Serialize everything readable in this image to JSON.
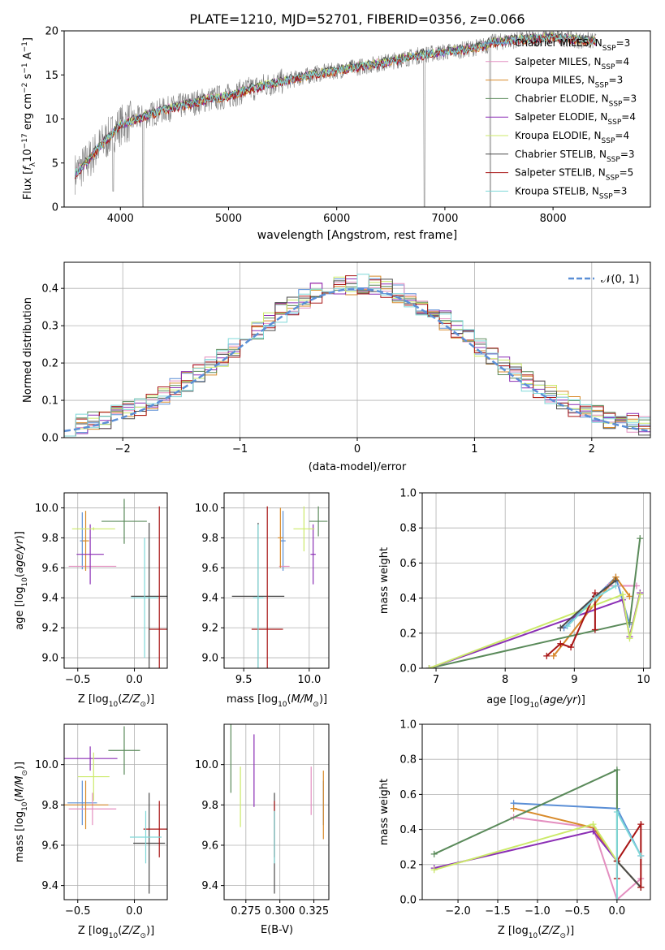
{
  "figure_title": "PLATE=1210, MJD=52701, FIBERID=0356, z=0.066",
  "colors": {
    "Chabrier MILES": "#5b8fd6",
    "Salpeter MILES": "#e48fc0",
    "Kroupa MILES": "#d88a2a",
    "Chabrier ELODIE": "#5a8a5a",
    "Salpeter ELODIE": "#8b2fb5",
    "Kroupa ELODIE": "#ccea6a",
    "Chabrier STELIB": "#4a4a4a",
    "Salpeter STELIB": "#a81414",
    "Kroupa STELIB": "#7fd8d8",
    "gauss": "#5b8fd6",
    "observed": "#808080"
  },
  "chart_data": [
    {
      "id": "spectrum",
      "type": "line",
      "title": "PLATE=1210, MJD=52701, FIBERID=0356, z=0.066",
      "xlabel": "wavelength [Angstrom, rest frame]",
      "ylabel": "Flux [f_λ10^-17 erg cm^-2 s^-1 A^-1]",
      "xlim": [
        3480,
        8900
      ],
      "ylim": [
        0,
        20
      ],
      "xticks": [
        4000,
        5000,
        6000,
        7000,
        8000
      ],
      "yticks": [
        0,
        5,
        10,
        15,
        20
      ],
      "legend_loc": "upper right",
      "legend": [
        {
          "prefix": "Chabrier MILES, N",
          "sub": "SSP",
          "suffix": "=3"
        },
        {
          "prefix": "Salpeter MILES, N",
          "sub": "SSP",
          "suffix": "=4"
        },
        {
          "prefix": "Kroupa MILES, N",
          "sub": "SSP",
          "suffix": "=3"
        },
        {
          "prefix": "Chabrier ELODIE, N",
          "sub": "SSP",
          "suffix": "=3"
        },
        {
          "prefix": "Salpeter ELODIE, N",
          "sub": "SSP",
          "suffix": "=4"
        },
        {
          "prefix": "Kroupa ELODIE, N",
          "sub": "SSP",
          "suffix": "=4"
        },
        {
          "prefix": "Chabrier STELIB, N",
          "sub": "SSP",
          "suffix": "=3"
        },
        {
          "prefix": "Salpeter STELIB, N",
          "sub": "SSP",
          "suffix": "=5"
        },
        {
          "prefix": "Kroupa STELIB, N",
          "sub": "SSP",
          "suffix": "=3"
        }
      ],
      "continuum_x": [
        3580,
        3700,
        3800,
        3900,
        4000,
        4200,
        4400,
        4600,
        4800,
        5000,
        5200,
        5400,
        5600,
        5800,
        6000,
        6200,
        6400,
        6600,
        6800,
        7000,
        7200,
        7400
      ],
      "continuum_y": [
        3.8,
        5.2,
        6.8,
        8.0,
        9.3,
        10.2,
        11.0,
        11.6,
        12.2,
        12.6,
        13.4,
        14.0,
        14.5,
        15.1,
        15.5,
        15.9,
        16.3,
        16.8,
        17.3,
        17.6,
        17.9,
        18.4
      ],
      "observed_tail_x": [
        7400,
        7600,
        7800,
        8000,
        8200,
        8400
      ],
      "observed_tail_y": [
        18.6,
        18.9,
        19.1,
        19.3,
        19.0,
        18.8
      ],
      "dips_x": [
        3933,
        4210,
        6810,
        7420
      ],
      "dips_y": [
        1.8,
        0.0,
        0.0,
        0.0
      ]
    },
    {
      "id": "residuals",
      "type": "histogram",
      "xlabel": "(data-model)/error",
      "ylabel": "Normed distribution",
      "xlim": [
        -2.5,
        2.5
      ],
      "ylim": [
        0,
        0.47
      ],
      "xticks": [
        -2,
        -1,
        0,
        1,
        2
      ],
      "yticks": [
        0.0,
        0.1,
        0.2,
        0.3,
        0.4
      ],
      "legend": "𝒩(0, 1)",
      "legend_loc": "upper right",
      "bin_width": 0.1,
      "gaussian": {
        "mean": 0,
        "sigma": 1
      }
    },
    {
      "id": "z_age",
      "type": "errorbar",
      "xlabel_main": "Z [log",
      "xlabel_sub": "10",
      "xlabel_rest": "(Z/Z",
      "ylabel": "age  [log10(age/yr)]",
      "xlim": [
        -0.62,
        0.29
      ],
      "ylim": [
        8.93,
        10.1
      ],
      "xticks": [
        -0.5,
        0.0
      ],
      "yticks": [
        9.0,
        9.2,
        9.4,
        9.6,
        9.8,
        10.0
      ],
      "points": [
        {
          "m": "Chabrier MILES",
          "x": -0.46,
          "xerr": 0.02,
          "y": 9.78,
          "yerr": 0.19
        },
        {
          "m": "Salpeter MILES",
          "x": -0.37,
          "xerr": 0.21,
          "y": 9.61,
          "yerr": 0.0
        },
        {
          "m": "Kroupa MILES",
          "x": -0.43,
          "xerr": 0.03,
          "y": 9.78,
          "yerr": 0.2
        },
        {
          "m": "Chabrier ELODIE",
          "x": -0.09,
          "xerr": 0.2,
          "y": 9.91,
          "yerr": 0.15
        },
        {
          "m": "Salpeter ELODIE",
          "x": -0.39,
          "xerr": 0.12,
          "y": 9.69,
          "yerr": 0.2
        },
        {
          "m": "Kroupa ELODIE",
          "x": -0.36,
          "xerr": 0.19,
          "y": 9.86,
          "yerr": 0.01
        },
        {
          "m": "Chabrier STELIB",
          "x": 0.13,
          "xerr": 0.16,
          "y": 9.41,
          "yerr": 0.49
        },
        {
          "m": "Salpeter STELIB",
          "x": 0.22,
          "xerr": 0.09,
          "y": 9.19,
          "yerr": 0.82
        },
        {
          "m": "Kroupa STELIB",
          "x": 0.09,
          "xerr": 0.12,
          "y": 9.4,
          "yerr": 0.4
        }
      ]
    },
    {
      "id": "mass_age",
      "type": "errorbar",
      "xlabel_main": "mass [log",
      "xlabel_sub": "10",
      "xlabel_rest": "(M/M",
      "ylabel": "",
      "xlim": [
        9.35,
        10.15
      ],
      "ylim": [
        8.93,
        10.1
      ],
      "xticks": [
        9.5,
        10.0
      ],
      "yticks": [
        9.0,
        9.2,
        9.4,
        9.6,
        9.8,
        10.0
      ],
      "points": [
        {
          "m": "Chabrier MILES",
          "x": 9.8,
          "xerr": 0.02,
          "y": 9.78,
          "yerr": 0.2
        },
        {
          "m": "Salpeter MILES",
          "x": 9.81,
          "xerr": 0.04,
          "y": 9.61,
          "yerr": 0.0
        },
        {
          "m": "Kroupa MILES",
          "x": 9.78,
          "xerr": 0.02,
          "y": 9.8,
          "yerr": 0.2
        },
        {
          "m": "Chabrier ELODIE",
          "x": 10.07,
          "xerr": 0.07,
          "y": 9.91,
          "yerr": 0.1
        },
        {
          "m": "Salpeter ELODIE",
          "x": 10.03,
          "xerr": 0.02,
          "y": 9.69,
          "yerr": 0.2
        },
        {
          "m": "Kroupa ELODIE",
          "x": 9.96,
          "xerr": 0.08,
          "y": 9.86,
          "yerr": 0.15
        },
        {
          "m": "Chabrier STELIB",
          "x": 9.61,
          "xerr": 0.2,
          "y": 9.41,
          "yerr": 0.49
        },
        {
          "m": "Salpeter STELIB",
          "x": 9.68,
          "xerr": 0.12,
          "y": 9.19,
          "yerr": 0.82
        },
        {
          "m": "Kroupa STELIB",
          "x": 9.61,
          "xerr": 0.04,
          "y": 9.4,
          "yerr": 0.49
        }
      ]
    },
    {
      "id": "age_weight",
      "type": "line",
      "xlabel": "age  [log10(age/yr)]",
      "ylabel": "mass weight",
      "xlim": [
        6.8,
        10.1
      ],
      "ylim": [
        0,
        1
      ],
      "xticks": [
        7,
        8,
        9,
        10
      ],
      "yticks": [
        0.0,
        0.2,
        0.4,
        0.6,
        0.8,
        1.0
      ],
      "series": [
        {
          "m": "Chabrier MILES",
          "x": [
            8.85,
            9.6,
            9.8
          ],
          "y": [
            0.23,
            0.52,
            0.25
          ]
        },
        {
          "m": "Salpeter MILES",
          "x": [
            8.7,
            9.5,
            9.9
          ],
          "y": [
            0.07,
            0.47,
            0.47
          ]
        },
        {
          "m": "Kroupa MILES",
          "x": [
            8.7,
            9.6,
            9.8
          ],
          "y": [
            0.07,
            0.52,
            0.41
          ]
        },
        {
          "m": "Chabrier ELODIE",
          "x": [
            6.9,
            9.8,
            9.95
          ],
          "y": [
            0.0,
            0.26,
            0.74
          ]
        },
        {
          "m": "Salpeter ELODIE",
          "x": [
            6.9,
            9.7,
            9.8,
            9.95
          ],
          "y": [
            0.0,
            0.39,
            0.18,
            0.43
          ]
        },
        {
          "m": "Kroupa ELODIE",
          "x": [
            6.9,
            9.7,
            9.8,
            9.95
          ],
          "y": [
            0.0,
            0.42,
            0.17,
            0.42
          ]
        },
        {
          "m": "Chabrier STELIB",
          "x": [
            8.8,
            9.3,
            9.6
          ],
          "y": [
            0.23,
            0.41,
            0.5
          ]
        },
        {
          "m": "Salpeter STELIB",
          "x": [
            8.6,
            8.8,
            8.95,
            9.3,
            9.3
          ],
          "y": [
            0.07,
            0.14,
            0.12,
            0.43,
            0.22
          ]
        },
        {
          "m": "Kroupa STELIB",
          "x": [
            8.9,
            9.3,
            9.6
          ],
          "y": [
            0.24,
            0.4,
            0.47
          ]
        }
      ]
    },
    {
      "id": "z_mass",
      "type": "errorbar",
      "xlabel_main": "Z [log",
      "xlabel_sub": "10",
      "xlabel_rest": "(Z/Z",
      "ylabel": "mass [log10(M/M☉)]",
      "xlim": [
        -0.62,
        0.29
      ],
      "ylim": [
        9.33,
        10.2
      ],
      "xticks": [
        -0.5,
        0.0
      ],
      "yticks": [
        9.4,
        9.6,
        9.8,
        10.0
      ],
      "points": [
        {
          "m": "Chabrier MILES",
          "x": -0.46,
          "xerr": 0.13,
          "y": 9.81,
          "yerr": 0.11
        },
        {
          "m": "Salpeter MILES",
          "x": -0.37,
          "xerr": 0.21,
          "y": 9.78,
          "yerr": 0.08
        },
        {
          "m": "Kroupa MILES",
          "x": -0.43,
          "xerr": 0.2,
          "y": 9.8,
          "yerr": 0.12
        },
        {
          "m": "Chabrier ELODIE",
          "x": -0.09,
          "xerr": 0.14,
          "y": 10.07,
          "yerr": 0.12
        },
        {
          "m": "Salpeter ELODIE",
          "x": -0.39,
          "xerr": 0.24,
          "y": 10.03,
          "yerr": 0.06
        },
        {
          "m": "Kroupa ELODIE",
          "x": -0.36,
          "xerr": 0.14,
          "y": 9.94,
          "yerr": 0.12
        },
        {
          "m": "Chabrier STELIB",
          "x": 0.13,
          "xerr": 0.14,
          "y": 9.61,
          "yerr": 0.25
        },
        {
          "m": "Salpeter STELIB",
          "x": 0.22,
          "xerr": 0.14,
          "y": 9.68,
          "yerr": 0.14
        },
        {
          "m": "Kroupa STELIB",
          "x": 0.1,
          "xerr": 0.14,
          "y": 9.64,
          "yerr": 0.13
        }
      ]
    },
    {
      "id": "ebv_mass",
      "type": "errorbar",
      "xlabel": "E(B-V)",
      "ylabel": "",
      "xlim": [
        0.259,
        0.336
      ],
      "ylim": [
        9.33,
        10.2
      ],
      "xticks": [
        0.275,
        0.3,
        0.325
      ],
      "yticks": [
        9.4,
        9.6,
        9.8,
        10.0
      ],
      "points": [
        {
          "m": "Chabrier MILES",
          "x": 0.332,
          "xerr": 0.0,
          "y": 9.81,
          "yerr": 0.11
        },
        {
          "m": "Salpeter MILES",
          "x": 0.323,
          "xerr": 0.0,
          "y": 9.87,
          "yerr": 0.12
        },
        {
          "m": "Kroupa MILES",
          "x": 0.332,
          "xerr": 0.0,
          "y": 9.8,
          "yerr": 0.17
        },
        {
          "m": "Chabrier ELODIE",
          "x": 0.264,
          "xerr": 0.0,
          "y": 10.07,
          "yerr": 0.21
        },
        {
          "m": "Salpeter ELODIE",
          "x": 0.281,
          "xerr": 0.0,
          "y": 9.97,
          "yerr": 0.18
        },
        {
          "m": "Kroupa ELODIE",
          "x": 0.271,
          "xerr": 0.0,
          "y": 9.84,
          "yerr": 0.15
        },
        {
          "m": "Chabrier STELIB",
          "x": 0.296,
          "xerr": 0.0,
          "y": 9.61,
          "yerr": 0.25
        },
        {
          "m": "Salpeter STELIB",
          "x": 0.296,
          "xerr": 0.0,
          "y": 9.68,
          "yerr": 0.14
        },
        {
          "m": "Kroupa STELIB",
          "x": 0.296,
          "xerr": 0.0,
          "y": 9.64,
          "yerr": 0.13
        }
      ]
    },
    {
      "id": "z_weight",
      "type": "line",
      "xlabel_main": "Z [log",
      "xlabel_sub": "10",
      "xlabel_rest": "(Z/Z",
      "ylabel": "mass weight",
      "xlim": [
        -2.45,
        0.42
      ],
      "ylim": [
        0,
        1
      ],
      "xticks": [
        -2.0,
        -1.5,
        -1.0,
        -0.5,
        0.0
      ],
      "xticklabels": [
        "−2.0",
        "−1.5",
        "−1.0",
        "−0.5",
        "0.0"
      ],
      "yticks": [
        0.0,
        0.2,
        0.4,
        0.6,
        0.8,
        1.0
      ],
      "series": [
        {
          "m": "Chabrier MILES",
          "x": [
            -1.3,
            0.0,
            0.3
          ],
          "y": [
            0.55,
            0.52,
            0.25
          ]
        },
        {
          "m": "Salpeter MILES",
          "x": [
            -1.3,
            -0.3,
            0.0,
            0.3
          ],
          "y": [
            0.47,
            0.41,
            0.0,
            0.12
          ]
        },
        {
          "m": "Kroupa MILES",
          "x": [
            -1.3,
            -0.3,
            0.0,
            0.3
          ],
          "y": [
            0.52,
            0.41,
            0.22,
            0.07
          ]
        },
        {
          "m": "Chabrier ELODIE",
          "x": [
            -2.3,
            0.0,
            0.0,
            0.3
          ],
          "y": [
            0.26,
            0.74,
            0.22,
            0.07
          ]
        },
        {
          "m": "Salpeter ELODIE",
          "x": [
            -2.3,
            -0.3,
            0.0,
            0.3
          ],
          "y": [
            0.18,
            0.39,
            0.22,
            0.07
          ]
        },
        {
          "m": "Kroupa ELODIE",
          "x": [
            -2.3,
            -0.3,
            0.0,
            0.3
          ],
          "y": [
            0.17,
            0.43,
            0.22,
            0.07
          ]
        },
        {
          "m": "Chabrier STELIB",
          "x": [
            0.0,
            0.3
          ],
          "y": [
            0.22,
            0.07
          ]
        },
        {
          "m": "Salpeter STELIB",
          "x": [
            0.0,
            0.0,
            0.3,
            0.3
          ],
          "y": [
            0.12,
            0.22,
            0.43,
            0.07
          ]
        },
        {
          "m": "Kroupa STELIB",
          "x": [
            0.0,
            0.0,
            0.3
          ],
          "y": [
            0.0,
            0.5,
            0.25
          ]
        }
      ]
    }
  ]
}
